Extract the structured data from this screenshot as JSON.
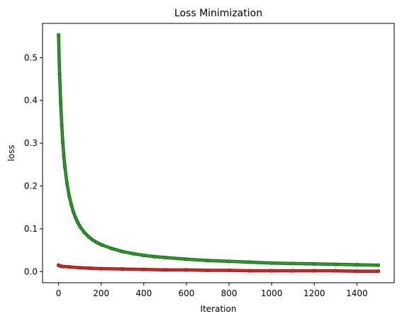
{
  "chart_data": {
    "type": "line",
    "title": "Loss Minimization",
    "xlabel": "Iteration",
    "ylabel": "loss",
    "xlim": [
      -75,
      1575
    ],
    "ylim": [
      -0.026,
      0.58
    ],
    "grid": false,
    "x_ticks": [
      0,
      200,
      400,
      600,
      800,
      1000,
      1200,
      1400
    ],
    "y_ticks": [
      0.0,
      0.1,
      0.2,
      0.3,
      0.4,
      0.5
    ],
    "x_tick_labels": [
      "0",
      "200",
      "400",
      "600",
      "800",
      "1000",
      "1200",
      "1400"
    ],
    "y_tick_labels": [
      "0.0",
      "0.1",
      "0.2",
      "0.3",
      "0.4",
      "0.5"
    ],
    "series": [
      {
        "color": "#2ca02c",
        "edge_color": "#1a5f1a",
        "x": [
          0,
          5,
          10,
          15,
          20,
          25,
          30,
          40,
          50,
          60,
          70,
          80,
          90,
          100,
          120,
          140,
          160,
          180,
          200,
          250,
          300,
          350,
          400,
          450,
          500,
          600,
          700,
          800,
          900,
          1000,
          1100,
          1200,
          1300,
          1400,
          1500
        ],
        "y": [
          0.553,
          0.462,
          0.395,
          0.343,
          0.302,
          0.27,
          0.244,
          0.205,
          0.177,
          0.156,
          0.139,
          0.126,
          0.115,
          0.106,
          0.092,
          0.082,
          0.074,
          0.068,
          0.063,
          0.054,
          0.047,
          0.042,
          0.038,
          0.035,
          0.033,
          0.029,
          0.026,
          0.024,
          0.022,
          0.02,
          0.019,
          0.018,
          0.017,
          0.016,
          0.015
        ]
      },
      {
        "color": "#d62728",
        "edge_color": "#8b1a1a",
        "x": [
          0,
          10,
          20,
          50,
          100,
          150,
          200,
          300,
          400,
          500,
          600,
          700,
          800,
          900,
          1000,
          1100,
          1200,
          1300,
          1400,
          1500
        ],
        "y": [
          0.015,
          0.013,
          0.012,
          0.011,
          0.009,
          0.008,
          0.007,
          0.006,
          0.005,
          0.004,
          0.004,
          0.003,
          0.003,
          0.002,
          0.002,
          0.002,
          0.002,
          0.002,
          0.001,
          0.001
        ]
      }
    ]
  }
}
